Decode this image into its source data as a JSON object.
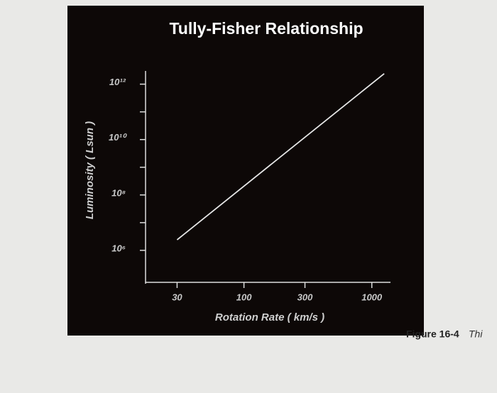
{
  "chart_data": {
    "type": "line",
    "title": "Tully-Fisher Relationship",
    "x_label": "Rotation Rate ( km/s )",
    "y_label": "Luminosity ( Lsun )",
    "xscale": "log",
    "yscale": "log",
    "xlim": [
      17,
      1400
    ],
    "ylim": [
      70000,
      3000000000000
    ],
    "xticks": [
      30,
      100,
      300,
      1000
    ],
    "yticks": [
      {
        "value": 1000000,
        "label": "10⁶"
      },
      {
        "value": 100000000,
        "label": "10⁸"
      },
      {
        "value": 10000000000,
        "label": "10¹⁰"
      },
      {
        "value": 1000000000000,
        "label": "10¹²"
      }
    ],
    "yminorticks": [
      10000000,
      1000000000,
      100000000000
    ],
    "x": [
      30,
      1250
    ],
    "series": [
      {
        "color": "#e6e6e6",
        "values": [
          2400000,
          2400000000000
        ]
      }
    ]
  },
  "caption": {
    "label": "Figure 16-4",
    "text": "Thi"
  }
}
